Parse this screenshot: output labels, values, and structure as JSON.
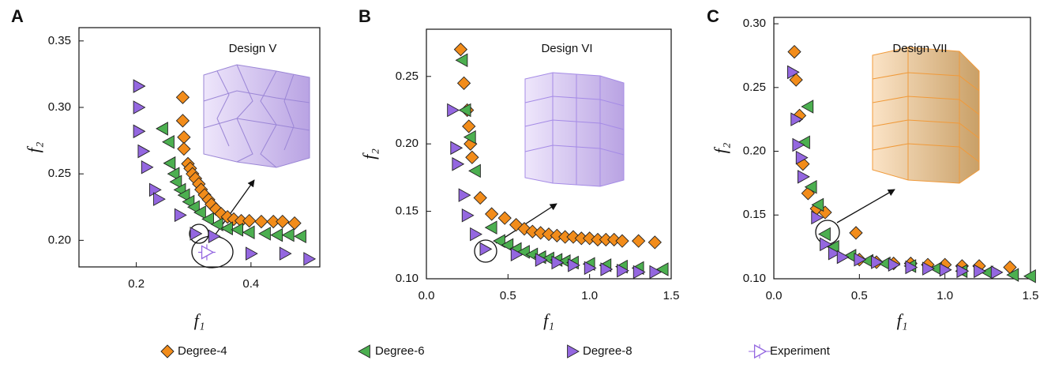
{
  "chart_data": [
    {
      "type": "scatter",
      "label": "A",
      "title": "Design V",
      "xlabel": "f₁",
      "ylabel": "f₂",
      "xlim": [
        0.1,
        0.52
      ],
      "ylim": [
        0.18,
        0.36
      ],
      "xticks": [
        0.2,
        0.4
      ],
      "yticks": [
        {
          "value": 0.2,
          "label": "0.20"
        },
        0.25,
        {
          "value": 0.3,
          "label": "0.30"
        },
        0.35
      ],
      "series": [
        {
          "name": "Degree-4",
          "color": "#f28c1a",
          "marker": "diamond",
          "x": [
            0.281,
            0.281,
            0.283,
            0.283,
            0.29,
            0.294,
            0.298,
            0.303,
            0.309,
            0.313,
            0.319,
            0.326,
            0.331,
            0.339,
            0.348,
            0.359,
            0.37,
            0.383,
            0.397,
            0.418,
            0.439,
            0.455,
            0.476
          ],
          "y": [
            0.3076,
            0.29,
            0.2776,
            0.2688,
            0.2576,
            0.2541,
            0.25,
            0.2465,
            0.2424,
            0.2382,
            0.2341,
            0.2306,
            0.2271,
            0.2235,
            0.22,
            0.2176,
            0.2159,
            0.2147,
            0.2147,
            0.2141,
            0.2141,
            0.2141,
            0.2129
          ]
        },
        {
          "name": "Degree-6",
          "color": "#4caf50",
          "marker": "triangle-left",
          "x": [
            0.246,
            0.257,
            0.259,
            0.266,
            0.27,
            0.277,
            0.284,
            0.292,
            0.301,
            0.312,
            0.326,
            0.342,
            0.359,
            0.377,
            0.397,
            0.425,
            0.446,
            0.466,
            0.487
          ],
          "y": [
            0.284,
            0.274,
            0.258,
            0.25,
            0.244,
            0.238,
            0.234,
            0.229,
            0.225,
            0.221,
            0.216,
            0.212,
            0.209,
            0.208,
            0.206,
            0.205,
            0.204,
            0.204,
            0.203
          ]
        },
        {
          "name": "Degree-8",
          "color": "#9467e0",
          "marker": "triangle-right",
          "x": [
            0.204,
            0.204,
            0.204,
            0.212,
            0.218,
            0.232,
            0.239,
            0.276,
            0.303,
            0.335,
            0.4,
            0.459,
            0.501
          ],
          "y": [
            0.316,
            0.3,
            0.282,
            0.267,
            0.255,
            0.238,
            0.231,
            0.219,
            0.205,
            0.203,
            0.19,
            0.19,
            0.186
          ]
        },
        {
          "name": "Experiment",
          "color": "#9467e0",
          "marker": "triangle-right-open",
          "x": [
            0.323
          ],
          "y": [
            0.191
          ],
          "xerr": [
            0.015
          ],
          "yerr": [
            0.006
          ]
        }
      ]
    },
    {
      "type": "scatter",
      "label": "B",
      "title": "Design VI",
      "xlabel": "f₁",
      "ylabel": "f₂",
      "xlim": [
        0,
        1.5
      ],
      "ylim": [
        0.1,
        0.285
      ],
      "xticks": [
        {
          "value": 0,
          "label": "0.0"
        },
        0.5,
        {
          "value": 1,
          "label": "1.0"
        },
        1.5
      ],
      "yticks": [
        {
          "value": 0.1,
          "label": "0.10"
        },
        0.15,
        {
          "value": 0.2,
          "label": "0.20"
        },
        0.25
      ],
      "series": [
        {
          "color": "#f28c1a",
          "marker": "diamond",
          "x": [
            0.21,
            0.23,
            0.25,
            0.26,
            0.27,
            0.28,
            0.33,
            0.4,
            0.48,
            0.55,
            0.6,
            0.65,
            0.7,
            0.75,
            0.8,
            0.85,
            0.9,
            0.95,
            1.0,
            1.05,
            1.1,
            1.15,
            1.2,
            1.3,
            1.4
          ],
          "y": [
            0.27,
            0.245,
            0.225,
            0.213,
            0.2,
            0.19,
            0.16,
            0.148,
            0.145,
            0.14,
            0.137,
            0.135,
            0.134,
            0.133,
            0.132,
            0.131,
            0.131,
            0.13,
            0.13,
            0.129,
            0.129,
            0.129,
            0.128,
            0.128,
            0.127
          ]
        },
        {
          "color": "#4caf50",
          "marker": "triangle-left",
          "x": [
            0.22,
            0.24,
            0.27,
            0.3,
            0.4,
            0.45,
            0.5,
            0.55,
            0.6,
            0.65,
            0.7,
            0.75,
            0.8,
            0.85,
            0.9,
            1.0,
            1.1,
            1.2,
            1.3,
            1.45
          ],
          "y": [
            0.262,
            0.225,
            0.205,
            0.18,
            0.138,
            0.128,
            0.125,
            0.122,
            0.12,
            0.118,
            0.116,
            0.115,
            0.114,
            0.113,
            0.112,
            0.111,
            0.11,
            0.109,
            0.108,
            0.107
          ]
        },
        {
          "color": "#9467e0",
          "marker": "triangle-right",
          "x": [
            0.16,
            0.18,
            0.19,
            0.23,
            0.25,
            0.3,
            0.36,
            0.55,
            0.7,
            0.8,
            0.9,
            1.0,
            1.1,
            1.2,
            1.3,
            1.4
          ],
          "y": [
            0.225,
            0.197,
            0.185,
            0.162,
            0.147,
            0.133,
            0.122,
            0.118,
            0.114,
            0.112,
            0.11,
            0.108,
            0.107,
            0.106,
            0.105,
            0.105
          ]
        }
      ]
    },
    {
      "type": "scatter",
      "label": "C",
      "title": "Design VII",
      "xlabel": "f₁",
      "ylabel": "f₂",
      "xlim": [
        0,
        1.5
      ],
      "ylim": [
        0.1,
        0.305
      ],
      "xticks": [
        {
          "value": 0,
          "label": "0.0"
        },
        0.5,
        {
          "value": 1,
          "label": "1.0"
        },
        1.5
      ],
      "yticks": [
        {
          "value": 0.1,
          "label": "0.10"
        },
        0.15,
        {
          "value": 0.2,
          "label": "0.20"
        },
        0.25,
        {
          "value": 0.3,
          "label": "0.30"
        }
      ],
      "series": [
        {
          "color": "#f28c1a",
          "marker": "diamond",
          "x": [
            0.12,
            0.13,
            0.15,
            0.17,
            0.2,
            0.25,
            0.3,
            0.48,
            0.5,
            0.6,
            0.7,
            0.8,
            0.9,
            1.0,
            1.1,
            1.2,
            1.38
          ],
          "y": [
            0.278,
            0.256,
            0.228,
            0.19,
            0.167,
            0.155,
            0.152,
            0.136,
            0.115,
            0.113,
            0.112,
            0.112,
            0.111,
            0.111,
            0.11,
            0.11,
            0.109
          ]
        },
        {
          "color": "#4caf50",
          "marker": "triangle-left",
          "x": [
            0.2,
            0.18,
            0.22,
            0.26,
            0.3,
            0.35,
            0.45,
            0.55,
            0.65,
            0.8,
            0.95,
            1.1,
            1.25,
            1.4,
            1.5
          ],
          "y": [
            0.235,
            0.207,
            0.172,
            0.158,
            0.135,
            0.125,
            0.118,
            0.114,
            0.112,
            0.11,
            0.108,
            0.106,
            0.105,
            0.103,
            0.102
          ]
        },
        {
          "color": "#9467e0",
          "marker": "triangle-right",
          "x": [
            0.11,
            0.13,
            0.14,
            0.16,
            0.17,
            0.25,
            0.3,
            0.35,
            0.4,
            0.5,
            0.6,
            0.7,
            0.8,
            0.9,
            1.0,
            1.1,
            1.2,
            1.3
          ],
          "y": [
            0.262,
            0.225,
            0.205,
            0.195,
            0.18,
            0.148,
            0.127,
            0.12,
            0.117,
            0.115,
            0.113,
            0.111,
            0.109,
            0.108,
            0.107,
            0.106,
            0.106,
            0.105
          ]
        }
      ]
    }
  ]
}
